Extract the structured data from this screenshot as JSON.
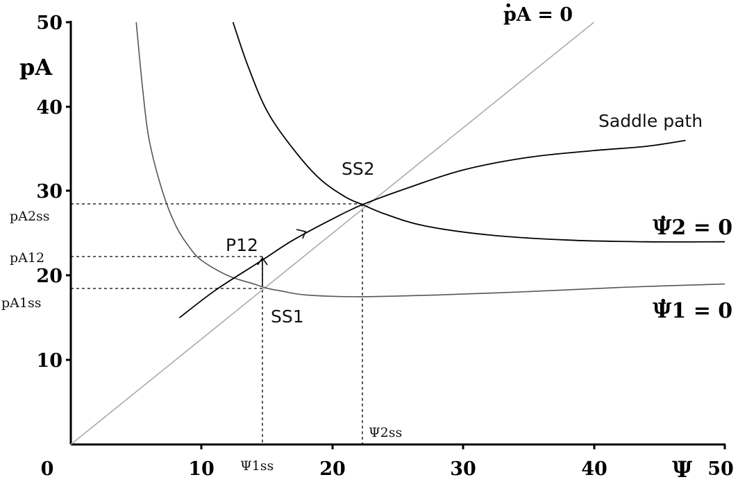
{
  "chart_data": {
    "type": "line",
    "xlabel": "Ψ",
    "ylabel": "pA",
    "xlim": [
      0,
      50
    ],
    "ylim": [
      0,
      50
    ],
    "x_ticks": [
      "0",
      "10",
      "20",
      "30",
      "40",
      "50"
    ],
    "y_ticks": [
      "10",
      "20",
      "30",
      "40",
      "50"
    ],
    "series": [
      {
        "name": "ṗA = 0",
        "color": "#aaaaaa",
        "points": [
          [
            0,
            0
          ],
          [
            40,
            50
          ]
        ]
      },
      {
        "name": "Ψ̇1 = 0",
        "color": "#555555",
        "points": [
          [
            5,
            50
          ],
          [
            5.5,
            42
          ],
          [
            6,
            36
          ],
          [
            7,
            30
          ],
          [
            8,
            26
          ],
          [
            9,
            23.5
          ],
          [
            10,
            21.8
          ],
          [
            12,
            20
          ],
          [
            14,
            19
          ],
          [
            15,
            18.5
          ],
          [
            16,
            18.2
          ],
          [
            18,
            17.7
          ],
          [
            22,
            17.5
          ],
          [
            28,
            17.7
          ],
          [
            35,
            18.1
          ],
          [
            42,
            18.6
          ],
          [
            50,
            19
          ]
        ]
      },
      {
        "name": "Ψ̇2 = 0",
        "color": "#000000",
        "points": [
          [
            12.4,
            50
          ],
          [
            13.5,
            45
          ],
          [
            15,
            39.5
          ],
          [
            17,
            35
          ],
          [
            19,
            31.5
          ],
          [
            21,
            29.3
          ],
          [
            22.3,
            28.4
          ],
          [
            24,
            27.3
          ],
          [
            27,
            25.9
          ],
          [
            32,
            24.8
          ],
          [
            38,
            24.2
          ],
          [
            44,
            24
          ],
          [
            50,
            24
          ]
        ]
      },
      {
        "name": "Saddle path",
        "color": "#000000",
        "points": [
          [
            8.3,
            15
          ],
          [
            11,
            18.2
          ],
          [
            14,
            21.2
          ],
          [
            15,
            22.2
          ],
          [
            17,
            24.2
          ],
          [
            20,
            26.7
          ],
          [
            22.3,
            28.4
          ],
          [
            26,
            30.5
          ],
          [
            30,
            32.5
          ],
          [
            35,
            34
          ],
          [
            40,
            34.8
          ],
          [
            44,
            35.3
          ],
          [
            47,
            36
          ]
        ]
      }
    ],
    "points": [
      {
        "label": "SS1",
        "x": 15,
        "y": 18.5
      },
      {
        "label": "SS2",
        "x": 22.3,
        "y": 28.4
      },
      {
        "label": "P12",
        "x": 15,
        "y": 22.2
      }
    ],
    "reference_lines": {
      "horizontal": [
        {
          "label": "pA2ss",
          "y": 28.4
        },
        {
          "label": "pA12",
          "y": 22.2
        },
        {
          "label": "pA1ss",
          "y": 18.5
        }
      ],
      "vertical": [
        {
          "label": "Ψ1ss",
          "x": 15
        },
        {
          "label": "Ψ2ss",
          "x": 22.3
        }
      ]
    },
    "annotations": {
      "saddle_path": "Saddle path",
      "ss1": "SS1",
      "ss2": "SS2",
      "p12": "P12",
      "psi1ss": "Ψ1ss",
      "psi2ss": "Ψ2ss",
      "pa2ss": "pA2ss",
      "pa12": "pA12",
      "pa1ss": "pA1ss",
      "pa_dot_eq": "pA = 0",
      "psi2_eq": "Ψ2 = 0",
      "psi1_eq": "Ψ1 = 0"
    },
    "grid": false
  }
}
